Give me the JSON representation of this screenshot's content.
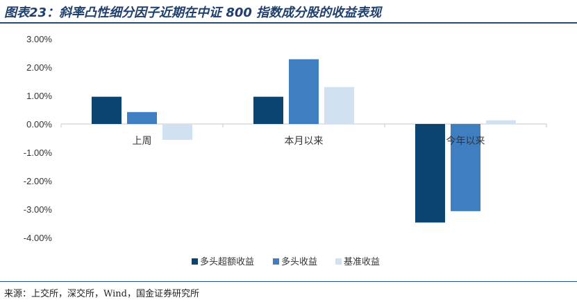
{
  "title": "图表23：斜率凸性细分因子近期在中证 800 指数成分股的收益表现",
  "source": "来源：上交所，深交所，Wind，国金证券研究所",
  "colors": {
    "s1": "#0b4470",
    "s2": "#3f7fc1",
    "s3": "#d2e1f1",
    "title": "#1f3f6e",
    "rule": "#1f4e79",
    "axis": "#c9c9c9"
  },
  "chart_data": {
    "type": "bar",
    "title": "",
    "xlabel": "",
    "ylabel": "",
    "categories": [
      "上周",
      "本月以来",
      "今年以来"
    ],
    "series": [
      {
        "name": "多头超额收益",
        "values": [
          0.96,
          0.96,
          -3.47
        ]
      },
      {
        "name": "多头收益",
        "values": [
          0.42,
          2.28,
          -3.07
        ]
      },
      {
        "name": "基准收益",
        "values": [
          -0.56,
          1.3,
          0.13
        ]
      }
    ],
    "ylim": [
      -4,
      3
    ],
    "yticks": [
      "3.00%",
      "2.00%",
      "1.00%",
      "0.00%",
      "-1.00%",
      "-2.00%",
      "-3.00%",
      "-4.00%"
    ],
    "ytick_values": [
      3,
      2,
      1,
      0,
      -1,
      -2,
      -3,
      -4
    ],
    "legend_position": "bottom"
  }
}
